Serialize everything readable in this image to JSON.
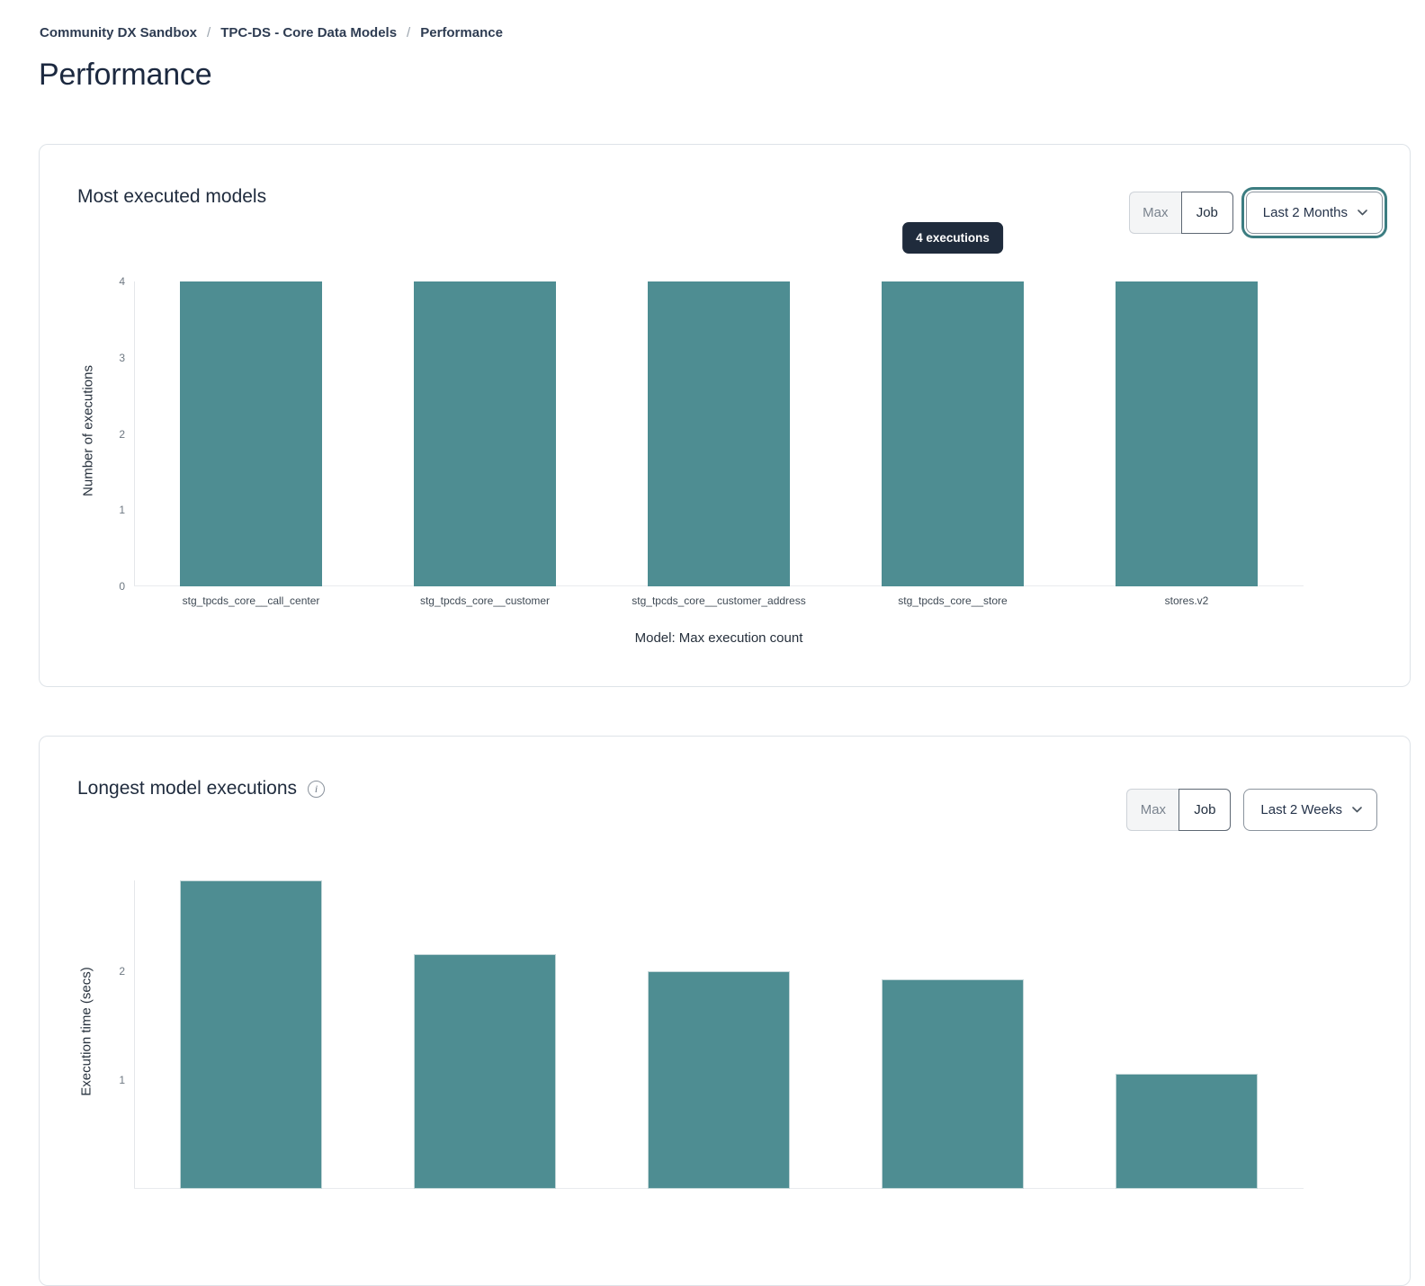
{
  "breadcrumb": {
    "separator": "/",
    "items": [
      "Community DX Sandbox",
      "TPC-DS - Core Data Models",
      "Performance"
    ]
  },
  "page_title": "Performance",
  "icons": {
    "info_glyph": "i"
  },
  "cards": {
    "most_executed": {
      "title": "Most executed models",
      "toggle_options": [
        "Max",
        "Job"
      ],
      "toggle_selected": "Job",
      "date_range": "Last 2 Months",
      "tooltip": "4 executions"
    },
    "longest_executions": {
      "title": "Longest model executions",
      "toggle_options": [
        "Max",
        "Job"
      ],
      "toggle_selected": "Job",
      "date_range": "Last 2 Weeks"
    }
  },
  "colors": {
    "bar": "#4e8d92",
    "tooltip_bg": "#1f2b3c",
    "focus_ring": "#3c7d81"
  },
  "chart_data": [
    {
      "type": "bar",
      "title": "Most executed models",
      "categories": [
        "stg_tpcds_core__call_center",
        "stg_tpcds_core__customer",
        "stg_tpcds_core__customer_address",
        "stg_tpcds_core__store",
        "stores.v2"
      ],
      "values": [
        4,
        4,
        4,
        4,
        4
      ],
      "xlabel": "Model: Max execution count",
      "ylabel": "Number of executions",
      "ylim": [
        0,
        4
      ],
      "yticks": [
        0,
        1,
        2,
        3,
        4
      ],
      "grid": false,
      "bar_color": "#4e8d92",
      "annotation": "4 executions"
    },
    {
      "type": "bar",
      "title": "Longest model executions",
      "values": [
        2.83,
        2.15,
        2.0,
        1.92,
        1.06
      ],
      "ylabel": "Execution time (secs)",
      "ylim": [
        0,
        2.83
      ],
      "yticks": [
        1,
        2
      ],
      "grid": false,
      "bar_color": "#4e8d92",
      "bar_stroke": "#c3d6d8"
    }
  ]
}
